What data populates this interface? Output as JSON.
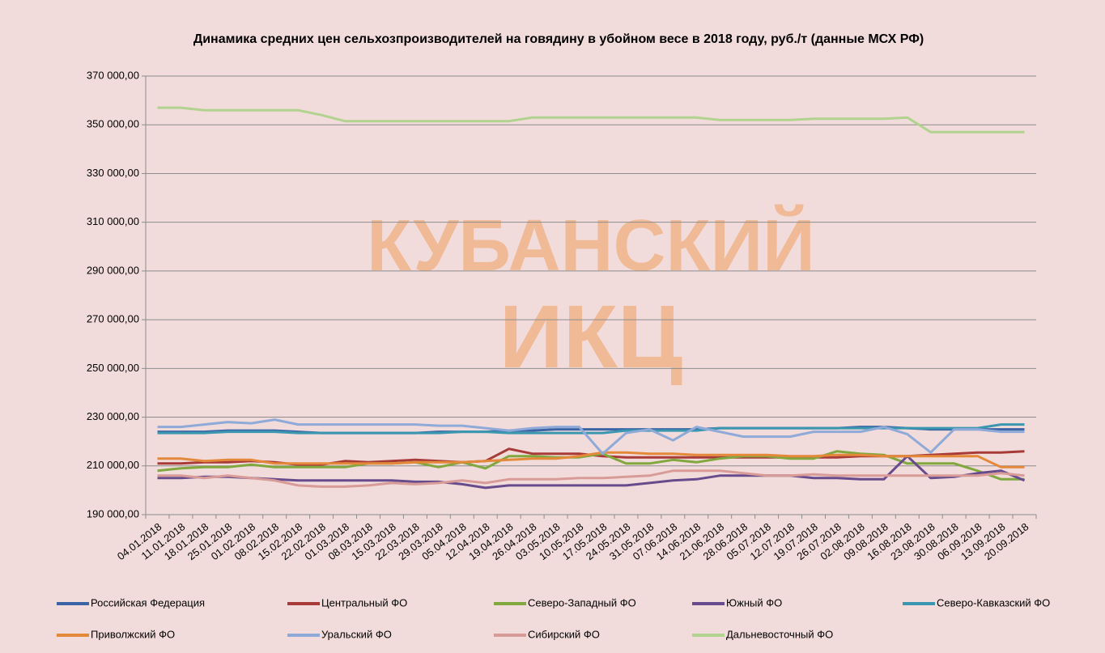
{
  "chart_data": {
    "type": "line",
    "title": "Динамика средних цен сельхозпроизводителей на говядину в убойном весе в 2018 году, руб./т  (данные МСХ РФ)",
    "watermark": [
      "КУБАНСКИЙ",
      "ИКЦ"
    ],
    "categories": [
      "04.01.2018",
      "11.01.2018",
      "18.01.2018",
      "25.01.2018",
      "01.02.2018",
      "08.02.2018",
      "15.02.2018",
      "22.02.2018",
      "01.03.2018",
      "08.03.2018",
      "15.03.2018",
      "22.03.2018",
      "29.03.2018",
      "05.04.2018",
      "12.04.2018",
      "19.04.2018",
      "26.04.2018",
      "03.05.2018",
      "10.05.2018",
      "17.05.2018",
      "24.05.2018",
      "31.05.2018",
      "07.06.2018",
      "14.06.2018",
      "21.06.2018",
      "28.06.2018",
      "05.07.2018",
      "12.07.2018",
      "19.07.2018",
      "26.07.2018",
      "02.08.2018",
      "09.08.2018",
      "16.08.2018",
      "23.08.2018",
      "30.08.2018",
      "06.09.2018",
      "13.09.2018",
      "20.09.2018"
    ],
    "ylim": [
      190000,
      370000
    ],
    "yticks": [
      {
        "value": 190000,
        "label": "190 000,00"
      },
      {
        "value": 210000,
        "label": "210 000,00"
      },
      {
        "value": 230000,
        "label": "230 000,00"
      },
      {
        "value": 250000,
        "label": "250 000,00"
      },
      {
        "value": 270000,
        "label": "270 000,00"
      },
      {
        "value": 290000,
        "label": "290 000,00"
      },
      {
        "value": 310000,
        "label": "310 000,00"
      },
      {
        "value": 330000,
        "label": "330 000,00"
      },
      {
        "value": 350000,
        "label": "350 000,00"
      },
      {
        "value": 370000,
        "label": "370 000,00"
      }
    ],
    "grid": true,
    "series": [
      {
        "name": "Российская Федерация",
        "color": "#3a64a6",
        "values": [
          224000,
          224000,
          224000,
          224500,
          224500,
          224500,
          224000,
          223500,
          223500,
          223500,
          223500,
          223500,
          224000,
          224000,
          224000,
          224500,
          224500,
          225000,
          225000,
          225000,
          225000,
          225000,
          225000,
          225000,
          225500,
          225500,
          225500,
          225500,
          225500,
          225500,
          226000,
          226000,
          225500,
          225000,
          225000,
          225000,
          225000,
          225000
        ]
      },
      {
        "name": "Центральный ФО",
        "color": "#a83a38",
        "values": [
          211000,
          211000,
          211500,
          211500,
          212000,
          211500,
          210500,
          210500,
          212000,
          211500,
          212000,
          212500,
          212000,
          211500,
          212000,
          217000,
          215000,
          215000,
          215000,
          214000,
          213500,
          213500,
          213500,
          213500,
          213500,
          213500,
          213500,
          213500,
          213500,
          213500,
          214000,
          214000,
          214000,
          214500,
          215000,
          215500,
          215500,
          216000
        ]
      },
      {
        "name": "Северо-Западный ФО",
        "color": "#80a83e",
        "values": [
          208000,
          209000,
          209500,
          209500,
          210500,
          209500,
          209500,
          209500,
          209500,
          211000,
          211000,
          211500,
          209500,
          211500,
          209000,
          214000,
          214000,
          213500,
          213500,
          215000,
          211000,
          211000,
          212500,
          211500,
          213000,
          214000,
          214000,
          213000,
          213000,
          216000,
          215000,
          214500,
          211000,
          211000,
          211000,
          208000,
          204500,
          204500
        ]
      },
      {
        "name": "Южный ФО",
        "color": "#674b8c",
        "values": [
          205000,
          205000,
          205500,
          205500,
          205000,
          204500,
          204000,
          204000,
          204000,
          204000,
          204000,
          203500,
          203500,
          202500,
          201000,
          202000,
          202000,
          202000,
          202000,
          202000,
          202000,
          203000,
          204000,
          204500,
          206000,
          206000,
          206000,
          206000,
          205000,
          205000,
          204500,
          204500,
          214000,
          205000,
          205500,
          207000,
          208000,
          204000
        ]
      },
      {
        "name": "Северо-Кавказский ФО",
        "color": "#3b97b0",
        "values": [
          223500,
          223500,
          223500,
          224000,
          224000,
          224000,
          223500,
          223500,
          223500,
          223500,
          223500,
          223500,
          223500,
          224000,
          224000,
          223500,
          223500,
          223500,
          223500,
          223500,
          224500,
          224500,
          224500,
          224500,
          225500,
          225500,
          225500,
          225500,
          225500,
          225500,
          225500,
          225500,
          225500,
          225500,
          225500,
          225500,
          227000,
          227000
        ]
      },
      {
        "name": "Приволжский ФО",
        "color": "#e4883a",
        "values": [
          213000,
          213000,
          212000,
          212500,
          212500,
          211000,
          211000,
          211000,
          211000,
          211000,
          211000,
          211500,
          211500,
          211500,
          212000,
          212500,
          213000,
          213000,
          214000,
          215500,
          215500,
          215000,
          215000,
          214500,
          214500,
          214500,
          214500,
          214000,
          214000,
          214500,
          214500,
          214000,
          214000,
          214000,
          214000,
          214000,
          209500,
          209500
        ]
      },
      {
        "name": "Уральский ФО",
        "color": "#8faad8",
        "values": [
          226000,
          226000,
          227000,
          228000,
          227500,
          229000,
          227000,
          227000,
          227000,
          227000,
          227000,
          227000,
          226500,
          226500,
          225500,
          224500,
          225500,
          226000,
          226000,
          215000,
          223500,
          225000,
          220500,
          226000,
          224000,
          222000,
          222000,
          222000,
          224000,
          224000,
          224000,
          226000,
          223000,
          215500,
          225000,
          225000,
          224000,
          224000
        ]
      },
      {
        "name": "Сибирский ФО",
        "color": "#d99b98",
        "values": [
          206000,
          206000,
          205000,
          206000,
          205000,
          204000,
          202000,
          201500,
          201500,
          202000,
          203000,
          202500,
          203000,
          204000,
          203000,
          204500,
          204500,
          204500,
          205000,
          205000,
          205500,
          206000,
          208000,
          208000,
          208000,
          207000,
          206000,
          206000,
          206500,
          206000,
          206000,
          206000,
          206000,
          206000,
          206000,
          206000,
          207000,
          206000
        ]
      },
      {
        "name": "Дальневосточный ФО",
        "color": "#b2d28f",
        "values": [
          357000,
          357000,
          356000,
          356000,
          356000,
          356000,
          356000,
          354000,
          351500,
          351500,
          351500,
          351500,
          351500,
          351500,
          351500,
          351500,
          353000,
          353000,
          353000,
          353000,
          353000,
          353000,
          353000,
          353000,
          352000,
          352000,
          352000,
          352000,
          352500,
          352500,
          352500,
          352500,
          353000,
          347000,
          347000,
          347000,
          347000,
          347000
        ]
      }
    ]
  }
}
